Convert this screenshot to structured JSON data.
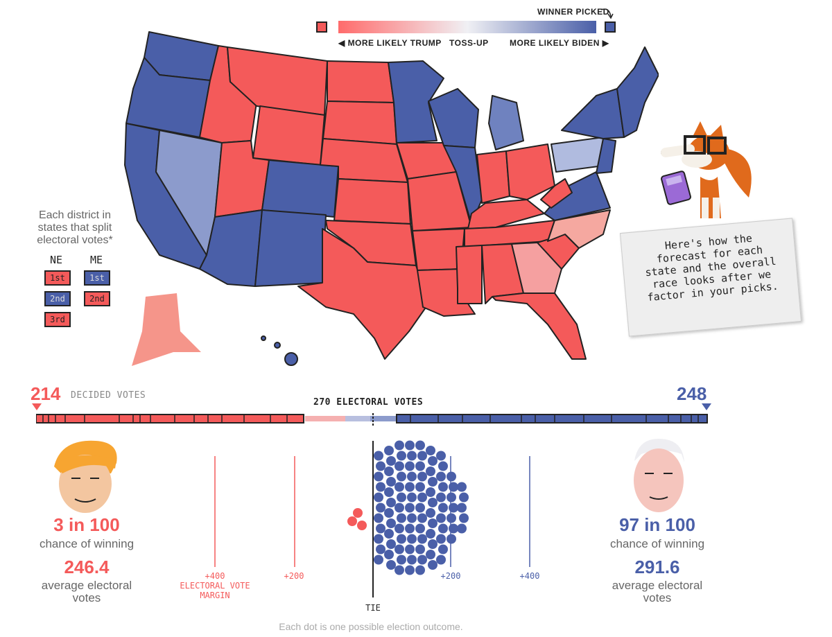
{
  "legend": {
    "winner_picked": "WINNER PICKED",
    "more_likely_trump": "◀ MORE LIKELY TRUMP",
    "toss_up": "TOSS-UP",
    "more_likely_biden": "MORE LIKELY BIDEN ▶",
    "colors": {
      "trump": "#f45a5a",
      "biden": "#4a5fa8",
      "tossup": "#f0f0f4"
    }
  },
  "districts": {
    "title": "Each district in states that split electoral votes*",
    "ne_header": "NE",
    "me_header": "ME",
    "ne": [
      "1st",
      "2nd",
      "3rd"
    ],
    "me": [
      "1st",
      "2nd"
    ]
  },
  "mascot": {
    "icon": "fox-mascot-icon",
    "speech": "Here's how the forecast for each state and the overall race looks after we factor in your picks."
  },
  "vote_bar": {
    "trump_decided": "214",
    "biden_decided": "248",
    "decided_label": "DECIDED VOTES",
    "threshold_label": "270 ELECTORAL VOTES"
  },
  "trump": {
    "icon": "trump-portrait-icon",
    "chance": "3 in 100",
    "chance_label": "chance of winning",
    "avg_votes": "246.4",
    "avg_label": "average electoral votes"
  },
  "biden": {
    "icon": "biden-portrait-icon",
    "chance": "97 in 100",
    "chance_label": "chance of winning",
    "avg_votes": "291.6",
    "avg_label": "average electoral votes"
  },
  "distribution": {
    "labels": {
      "trump_400": "+400",
      "trump_200": "+200",
      "biden_200": "+200",
      "biden_400": "+400",
      "margin_label": "ELECTORAL VOTE MARGIN",
      "tie": "TIE"
    },
    "footnote": "Each dot is one possible election outcome.",
    "trump_dots": 3,
    "biden_dots": 97
  }
}
